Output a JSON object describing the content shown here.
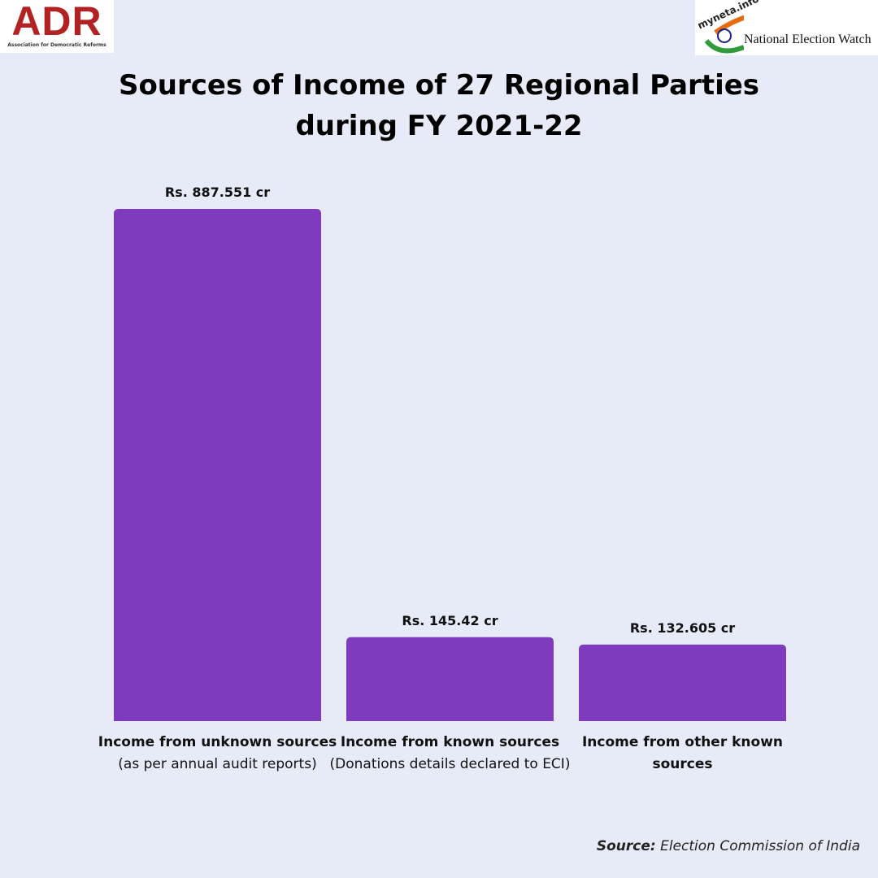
{
  "logos": {
    "adr": {
      "title": "ADR",
      "subtitle": "Association for Democratic Reforms"
    },
    "new": {
      "site": "myneta.info",
      "name": "National Election Watch"
    }
  },
  "chart_data": {
    "type": "bar",
    "title": "Sources of Income of 27 Regional Parties during FY 2021-22",
    "categories": [
      "Income from unknown sources",
      "Income from known sources",
      "Income from other known sources"
    ],
    "category_notes": [
      "(as per annual audit reports)",
      "(Donations details declared to ECI)",
      null
    ],
    "values": [
      887.551,
      145.42,
      132.605
    ],
    "value_labels": [
      "Rs. 887.551 cr",
      "Rs. 145.42 cr",
      "Rs. 132.605 cr"
    ],
    "color": "#7e3bbd",
    "source_label": "Source:",
    "source": "Election Commission of India"
  }
}
